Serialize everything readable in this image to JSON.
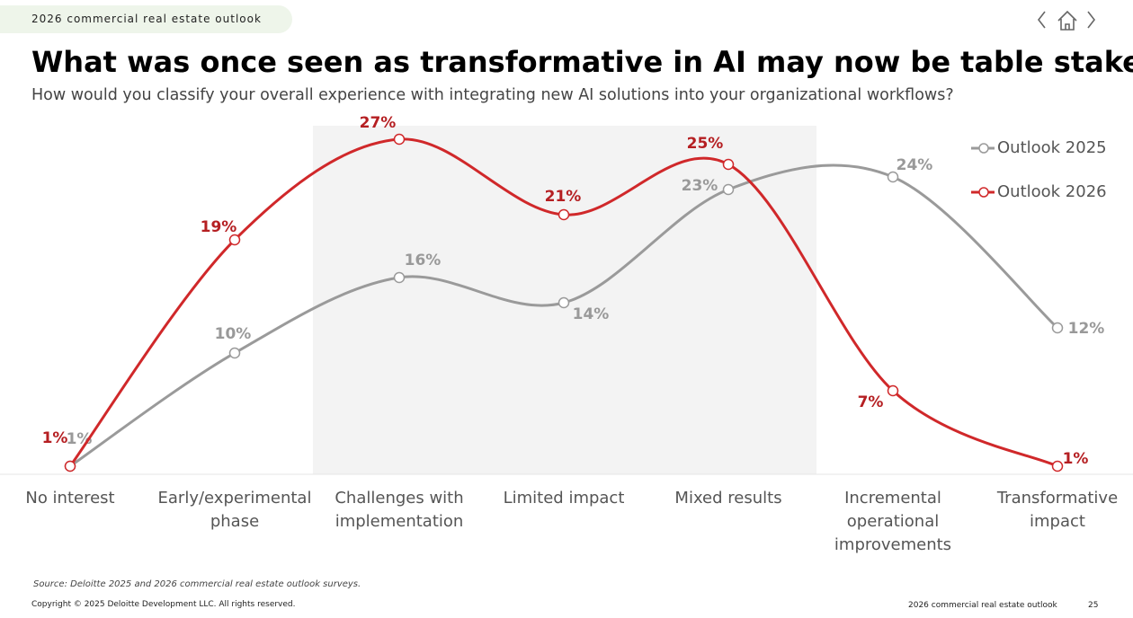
{
  "header": {
    "tag": "2026 commercial real estate outlook"
  },
  "chart_data": {
    "type": "line",
    "title": "What was once seen as transformative in AI may now be table stakes",
    "subtitle": "How would you classify your overall experience with integrating new AI solutions into your organizational workflows?",
    "categories": [
      "No interest",
      "Early/experimental phase",
      "Challenges with implementation",
      "Limited impact",
      "Mixed results",
      "Incremental operational improvements",
      "Transformative impact"
    ],
    "series": [
      {
        "name": "Outlook 2025",
        "color": "#9a9a9a",
        "values": [
          1,
          10,
          16,
          14,
          23,
          24,
          12
        ],
        "value_labels": [
          "1%",
          "10%",
          "16%",
          "14%",
          "23%",
          "24%",
          "12%"
        ]
      },
      {
        "name": "Outlook 2026",
        "color": "#d0282a",
        "values": [
          1,
          19,
          27,
          21,
          25,
          7,
          1
        ],
        "value_labels": [
          "1%",
          "19%",
          "27%",
          "21%",
          "25%",
          "7%",
          "1%"
        ]
      }
    ],
    "legend": "upper right"
  },
  "footer": {
    "source": "Source: Deloitte 2025 and 2026 commercial real estate outlook surveys.",
    "copyright": "Copyright © 2025 Deloitte Development LLC. All rights reserved.",
    "report": "2026 commercial real estate outlook",
    "page": 25
  }
}
